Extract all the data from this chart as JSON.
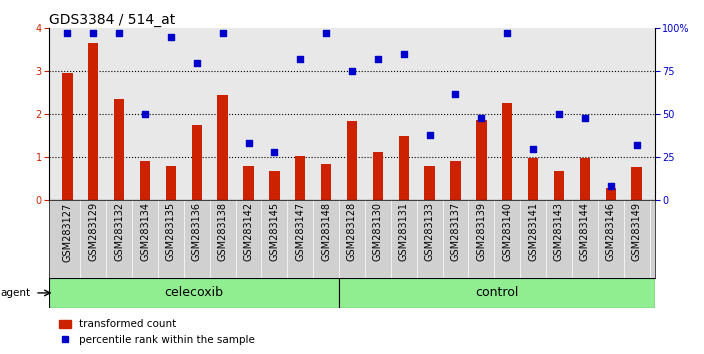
{
  "title": "GDS3384 / 514_at",
  "categories": [
    "GSM283127",
    "GSM283129",
    "GSM283132",
    "GSM283134",
    "GSM283135",
    "GSM283136",
    "GSM283138",
    "GSM283142",
    "GSM283145",
    "GSM283147",
    "GSM283148",
    "GSM283128",
    "GSM283130",
    "GSM283131",
    "GSM283133",
    "GSM283137",
    "GSM283139",
    "GSM283140",
    "GSM283141",
    "GSM283143",
    "GSM283144",
    "GSM283146",
    "GSM283149"
  ],
  "bar_values": [
    2.97,
    3.65,
    2.35,
    0.92,
    0.8,
    1.75,
    2.45,
    0.8,
    0.67,
    1.02,
    0.85,
    1.85,
    1.12,
    1.48,
    0.8,
    0.92,
    1.87,
    2.27,
    0.97,
    0.67,
    0.97,
    0.28,
    0.78
  ],
  "blue_values": [
    97,
    97,
    97,
    50,
    95,
    80,
    97,
    33,
    28,
    82,
    97,
    75,
    82,
    85,
    38,
    62,
    48,
    97,
    30,
    50,
    48,
    8,
    32
  ],
  "bar_color": "#cc2200",
  "dot_color": "#0000cc",
  "celecoxib_count": 11,
  "control_count": 12,
  "ylim_left": [
    0,
    4
  ],
  "ylim_right": [
    0,
    100
  ],
  "yticks_left": [
    0,
    1,
    2,
    3,
    4
  ],
  "yticks_right": [
    0,
    25,
    50,
    75,
    100
  ],
  "ylabel_right_labels": [
    "0",
    "25",
    "50",
    "75",
    "100%"
  ],
  "plot_bg": "#e8e8e8",
  "agent_label": "agent",
  "celecoxib_label": "celecoxib",
  "control_label": "control",
  "legend_bar_label": "transformed count",
  "legend_dot_label": "percentile rank within the sample",
  "title_fontsize": 10,
  "tick_fontsize": 7,
  "label_fontsize": 9,
  "agent_band_color": "#90ee90",
  "xticklabel_bg": "#d0d0d0"
}
